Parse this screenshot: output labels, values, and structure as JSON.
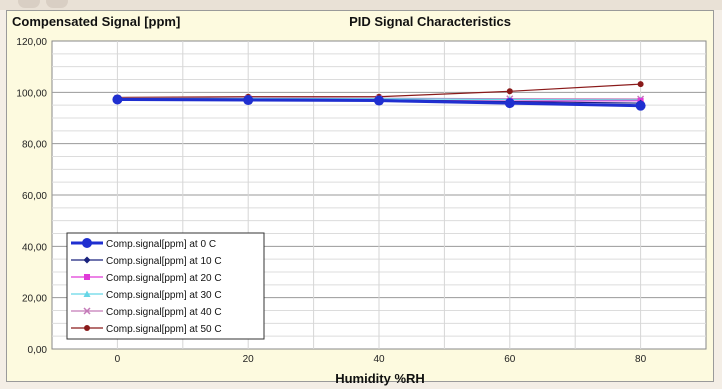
{
  "chart_data": {
    "type": "line",
    "title": "PID Signal Characteristics",
    "ylabel": "Compensated Signal [ppm]",
    "xlabel": "Humidity %RH",
    "x": [
      0,
      20,
      40,
      60,
      80
    ],
    "x_ticks": [
      "0",
      "20",
      "40",
      "60",
      "80"
    ],
    "xlim": [
      -10,
      90
    ],
    "ylim": [
      0,
      120
    ],
    "y_ticks": [
      "0,00",
      "20,00",
      "40,00",
      "60,00",
      "80,00",
      "100,00",
      "120,00"
    ],
    "grid": true,
    "legend_position": "bottom-left",
    "series": [
      {
        "name": "Comp.signal[ppm] at 0 C",
        "color": "#1f2fd0",
        "marker": "circle-large",
        "values": [
          97.2,
          97.0,
          96.8,
          95.8,
          94.8
        ]
      },
      {
        "name": "Comp.signal[ppm] at 10 C",
        "color": "#1a237e",
        "marker": "diamond",
        "values": [
          97.5,
          97.4,
          97.1,
          96.4,
          95.8
        ]
      },
      {
        "name": "Comp.signal[ppm] at 20 C",
        "color": "#e03ad8",
        "marker": "square",
        "values": [
          97.4,
          97.3,
          97.0,
          96.6,
          96.7
        ]
      },
      {
        "name": "Comp.signal[ppm] at 30 C",
        "color": "#66d6e6",
        "marker": "triangle",
        "values": [
          97.6,
          97.6,
          97.5,
          97.2,
          97.0
        ]
      },
      {
        "name": "Comp.signal[ppm] at 40 C",
        "color": "#c47ab8",
        "marker": "x",
        "values": [
          97.7,
          97.8,
          97.7,
          97.5,
          97.4
        ]
      },
      {
        "name": "Comp.signal[ppm] at 50 C",
        "color": "#8a1a1a",
        "marker": "circle",
        "values": [
          98.0,
          98.3,
          98.3,
          100.4,
          103.2
        ]
      }
    ]
  }
}
